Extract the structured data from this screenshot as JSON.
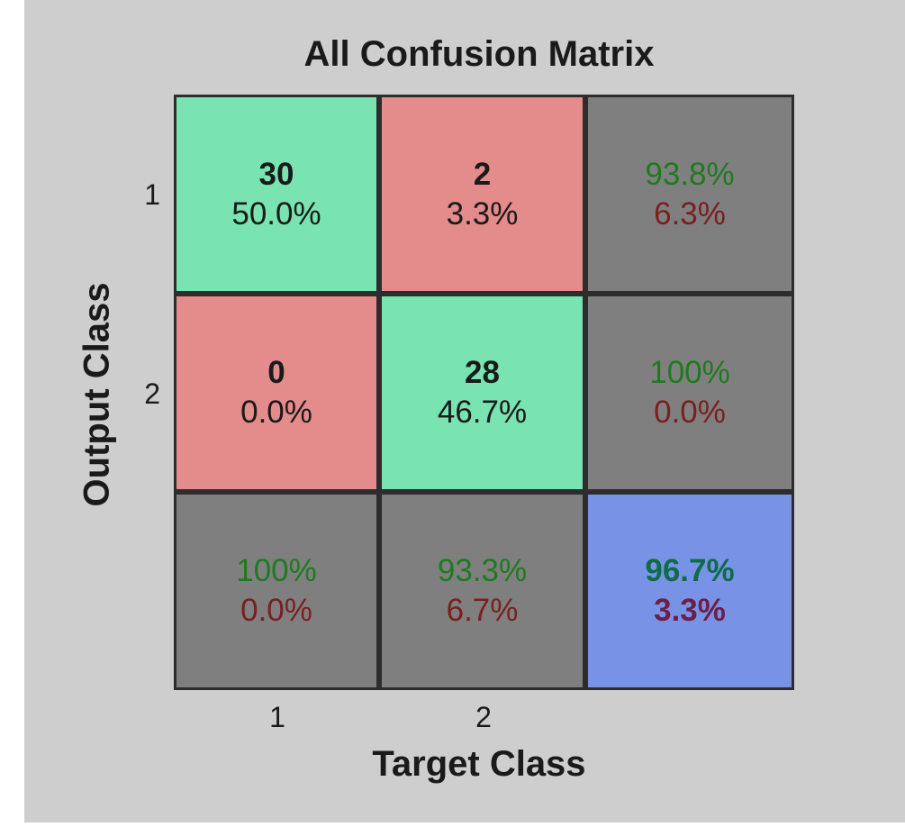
{
  "chart_data": {
    "type": "table",
    "title": "All Confusion Matrix",
    "xlabel": "Target Class",
    "ylabel": "Output Class",
    "x_tick_labels": [
      "1",
      "2"
    ],
    "y_tick_labels": [
      "1",
      "2"
    ],
    "colors": {
      "correct": "#79e3b1",
      "incorrect": "#e48b8b",
      "summary": "#7f7f7f",
      "total": "#7893e6",
      "green_text": "#1f7a1f",
      "red_text": "#7a1f1f",
      "dark_text": "#1a1a1a"
    },
    "cells": [
      [
        {
          "line1": "30",
          "line2": "50.0%",
          "kind": "correct"
        },
        {
          "line1": "2",
          "line2": "3.3%",
          "kind": "incorrect"
        },
        {
          "line1": "93.8%",
          "line2": "6.3%",
          "kind": "summary"
        }
      ],
      [
        {
          "line1": "0",
          "line2": "0.0%",
          "kind": "incorrect"
        },
        {
          "line1": "28",
          "line2": "46.7%",
          "kind": "correct"
        },
        {
          "line1": "100%",
          "line2": "0.0%",
          "kind": "summary"
        }
      ],
      [
        {
          "line1": "100%",
          "line2": "0.0%",
          "kind": "summary"
        },
        {
          "line1": "93.3%",
          "line2": "6.7%",
          "kind": "summary"
        },
        {
          "line1": "96.7%",
          "line2": "3.3%",
          "kind": "total"
        }
      ]
    ]
  }
}
